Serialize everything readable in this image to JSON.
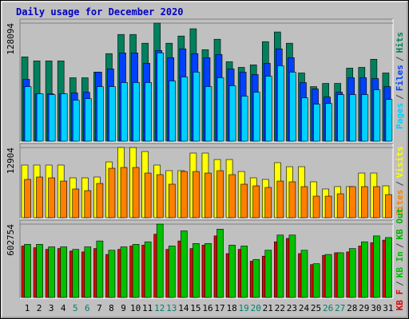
{
  "title": "Daily usage for December 2020",
  "legend_separator": "/",
  "chart_data": [
    {
      "type": "bar",
      "ylim": [
        0,
        128094
      ],
      "yticks": [
        128094
      ],
      "legend_order": "reverse",
      "series": [
        {
          "name": "Hits",
          "color": "#00805c",
          "values": [
            91500,
            87100,
            87100,
            87100,
            68800,
            68800,
            74900,
            95000,
            115800,
            115800,
            106300,
            128094,
            106300,
            114100,
            122000,
            99300,
            110600,
            86200,
            80100,
            82800,
            108000,
            118500,
            106300,
            74000,
            59200,
            62700,
            62700,
            79300,
            80100,
            88900,
            74000
          ]
        },
        {
          "name": "Files",
          "color": "#0040ff",
          "values": [
            67100,
            51400,
            51400,
            51400,
            52300,
            53100,
            74900,
            78400,
            95800,
            95800,
            84500,
            98400,
            90600,
            100200,
            95000,
            90600,
            94100,
            78400,
            74900,
            72300,
            84500,
            100200,
            90600,
            63600,
            56600,
            47900,
            53100,
            68800,
            68800,
            67900,
            59200
          ]
        },
        {
          "name": "Pages",
          "color": "#00d0ff",
          "values": [
            59200,
            51400,
            50500,
            51400,
            44400,
            46200,
            59200,
            59200,
            63600,
            63600,
            63600,
            95800,
            65300,
            69700,
            74900,
            59200,
            68800,
            60100,
            48800,
            53100,
            70500,
            81900,
            74900,
            47000,
            40100,
            40900,
            50500,
            50500,
            50500,
            55700,
            45300
          ]
        }
      ]
    },
    {
      "type": "bar",
      "ylim": [
        0,
        12904
      ],
      "yticks": [
        12904
      ],
      "legend_order": "reverse",
      "series": [
        {
          "name": "Visits",
          "color": "#ffff00",
          "values": [
            9680,
            9680,
            9680,
            9680,
            7330,
            7330,
            7480,
            10260,
            12904,
            12900,
            12170,
            9680,
            8650,
            8650,
            11880,
            11880,
            10700,
            10700,
            8500,
            7330,
            7040,
            10120,
            9380,
            9380,
            6600,
            5280,
            5720,
            5720,
            8210,
            8210,
            5860
          ]
        },
        {
          "name": "Sites",
          "color": "#ff8000",
          "values": [
            7040,
            7480,
            7330,
            6740,
            5280,
            4980,
            6300,
            9090,
            9240,
            9240,
            8210,
            7920,
            6160,
            8500,
            8500,
            8210,
            8650,
            7920,
            6160,
            5860,
            5570,
            6740,
            6600,
            5720,
            3960,
            3960,
            4400,
            5720,
            5720,
            5720,
            4250
          ]
        }
      ]
    },
    {
      "type": "bar",
      "ylim": [
        0,
        602754
      ],
      "yticks": [
        602754
      ],
      "legend_order": "forward",
      "categories": [
        "1",
        "2",
        "3",
        "4",
        "5",
        "6",
        "7",
        "8",
        "9",
        "10",
        "11",
        "12",
        "13",
        "14",
        "15",
        "16",
        "17",
        "18",
        "19",
        "20",
        "21",
        "22",
        "23",
        "24",
        "25",
        "26",
        "27",
        "28",
        "29",
        "30",
        "31"
      ],
      "category_colors": [
        "#000000",
        "#000000",
        "#000000",
        "#000000",
        "#00806c",
        "#00806c",
        "#000000",
        "#000000",
        "#000000",
        "#000000",
        "#000000",
        "#00806c",
        "#00806c",
        "#000000",
        "#000000",
        "#000000",
        "#000000",
        "#000000",
        "#00806c",
        "#00806c",
        "#000000",
        "#000000",
        "#000000",
        "#000000",
        "#000000",
        "#00806c",
        "#00806c",
        "#000000",
        "#000000",
        "#000000",
        "#000000"
      ],
      "series": [
        {
          "name": "KB F",
          "color": "#e00000",
          "values": [
            422600,
            408800,
            394900,
            401800,
            381000,
            374100,
            401800,
            353300,
            394900,
            422600,
            429500,
            519600,
            394900,
            464200,
            401800,
            429500,
            505700,
            360300,
            394900,
            297900,
            339500,
            457200,
            485000,
            360300,
            270200,
            346400,
            367200,
            374100,
            422600,
            450300,
            471100
          ]
        },
        {
          "name": "KB In",
          "color": "#00c000",
          "values": [
            436500,
            436500,
            415700,
            415700,
            394900,
            415700,
            464200,
            388000,
            415700,
            436500,
            457200,
            602754,
            422600,
            547300,
            443400,
            443400,
            561200,
            429500,
            422600,
            311800,
            388000,
            512700,
            512700,
            388000,
            277100,
            353300,
            367200,
            401800,
            457200,
            505700,
            491900
          ]
        }
      ],
      "extra_legend": {
        "text": "KB Out",
        "color": "#00b000"
      }
    }
  ]
}
